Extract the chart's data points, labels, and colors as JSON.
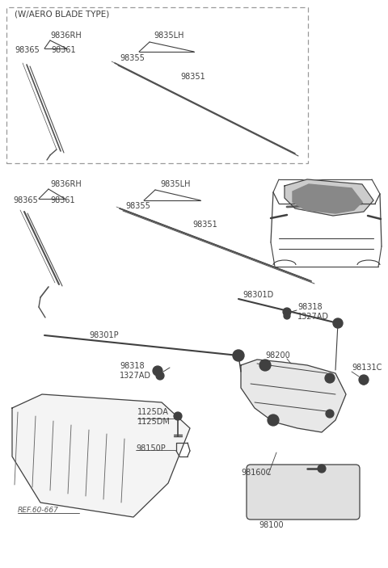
{
  "bg_color": "#ffffff",
  "lc": "#404040",
  "tc": "#404040",
  "gray": "#888888",
  "lgray": "#cccccc",
  "labels": {
    "aero_type": "(W/AERO BLADE TYPE)",
    "9836RH": "9836RH",
    "98365": "98365",
    "98361": "98361",
    "9835LH": "9835LH",
    "98355": "98355",
    "98351": "98351",
    "98301P": "98301P",
    "98301D": "98301D",
    "98318": "98318",
    "1327AD": "1327AD",
    "1125DA": "1125DA",
    "1125DM": "1125DM",
    "98150P": "98150P",
    "ref": "REF.60-667",
    "98200": "98200",
    "98131C": "98131C",
    "98160C": "98160C",
    "98100": "98100"
  }
}
